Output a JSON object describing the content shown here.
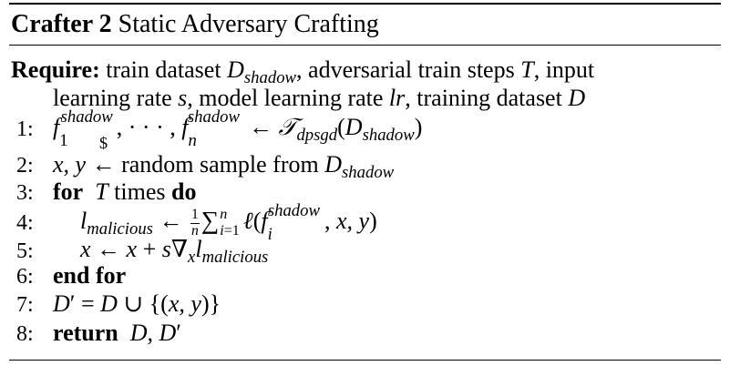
{
  "algorithm": {
    "label": "Crafter 2",
    "title": "Static Adversary Crafting",
    "require_label": "Require:",
    "require_text_1": "train dataset",
    "require_var_1": "D",
    "require_sub_1": "shadow",
    "require_text_2": ", adversarial train steps",
    "require_var_2": "T",
    "require_text_3": ", input",
    "require_text_4": "learning rate",
    "require_var_3": "s",
    "require_text_5": ", model learning rate",
    "require_var_4": "lr",
    "require_text_6": ", training dataset",
    "require_var_5": "D",
    "lines": [
      {
        "num": "1:"
      },
      {
        "num": "2:",
        "text": "random sample from"
      },
      {
        "num": "3:",
        "kw_for": "for",
        "text": "times",
        "kw_do": "do"
      },
      {
        "num": "4:"
      },
      {
        "num": "5:"
      },
      {
        "num": "6:",
        "kw": "end for"
      },
      {
        "num": "7:"
      },
      {
        "num": "8:",
        "kw": "return"
      }
    ]
  }
}
